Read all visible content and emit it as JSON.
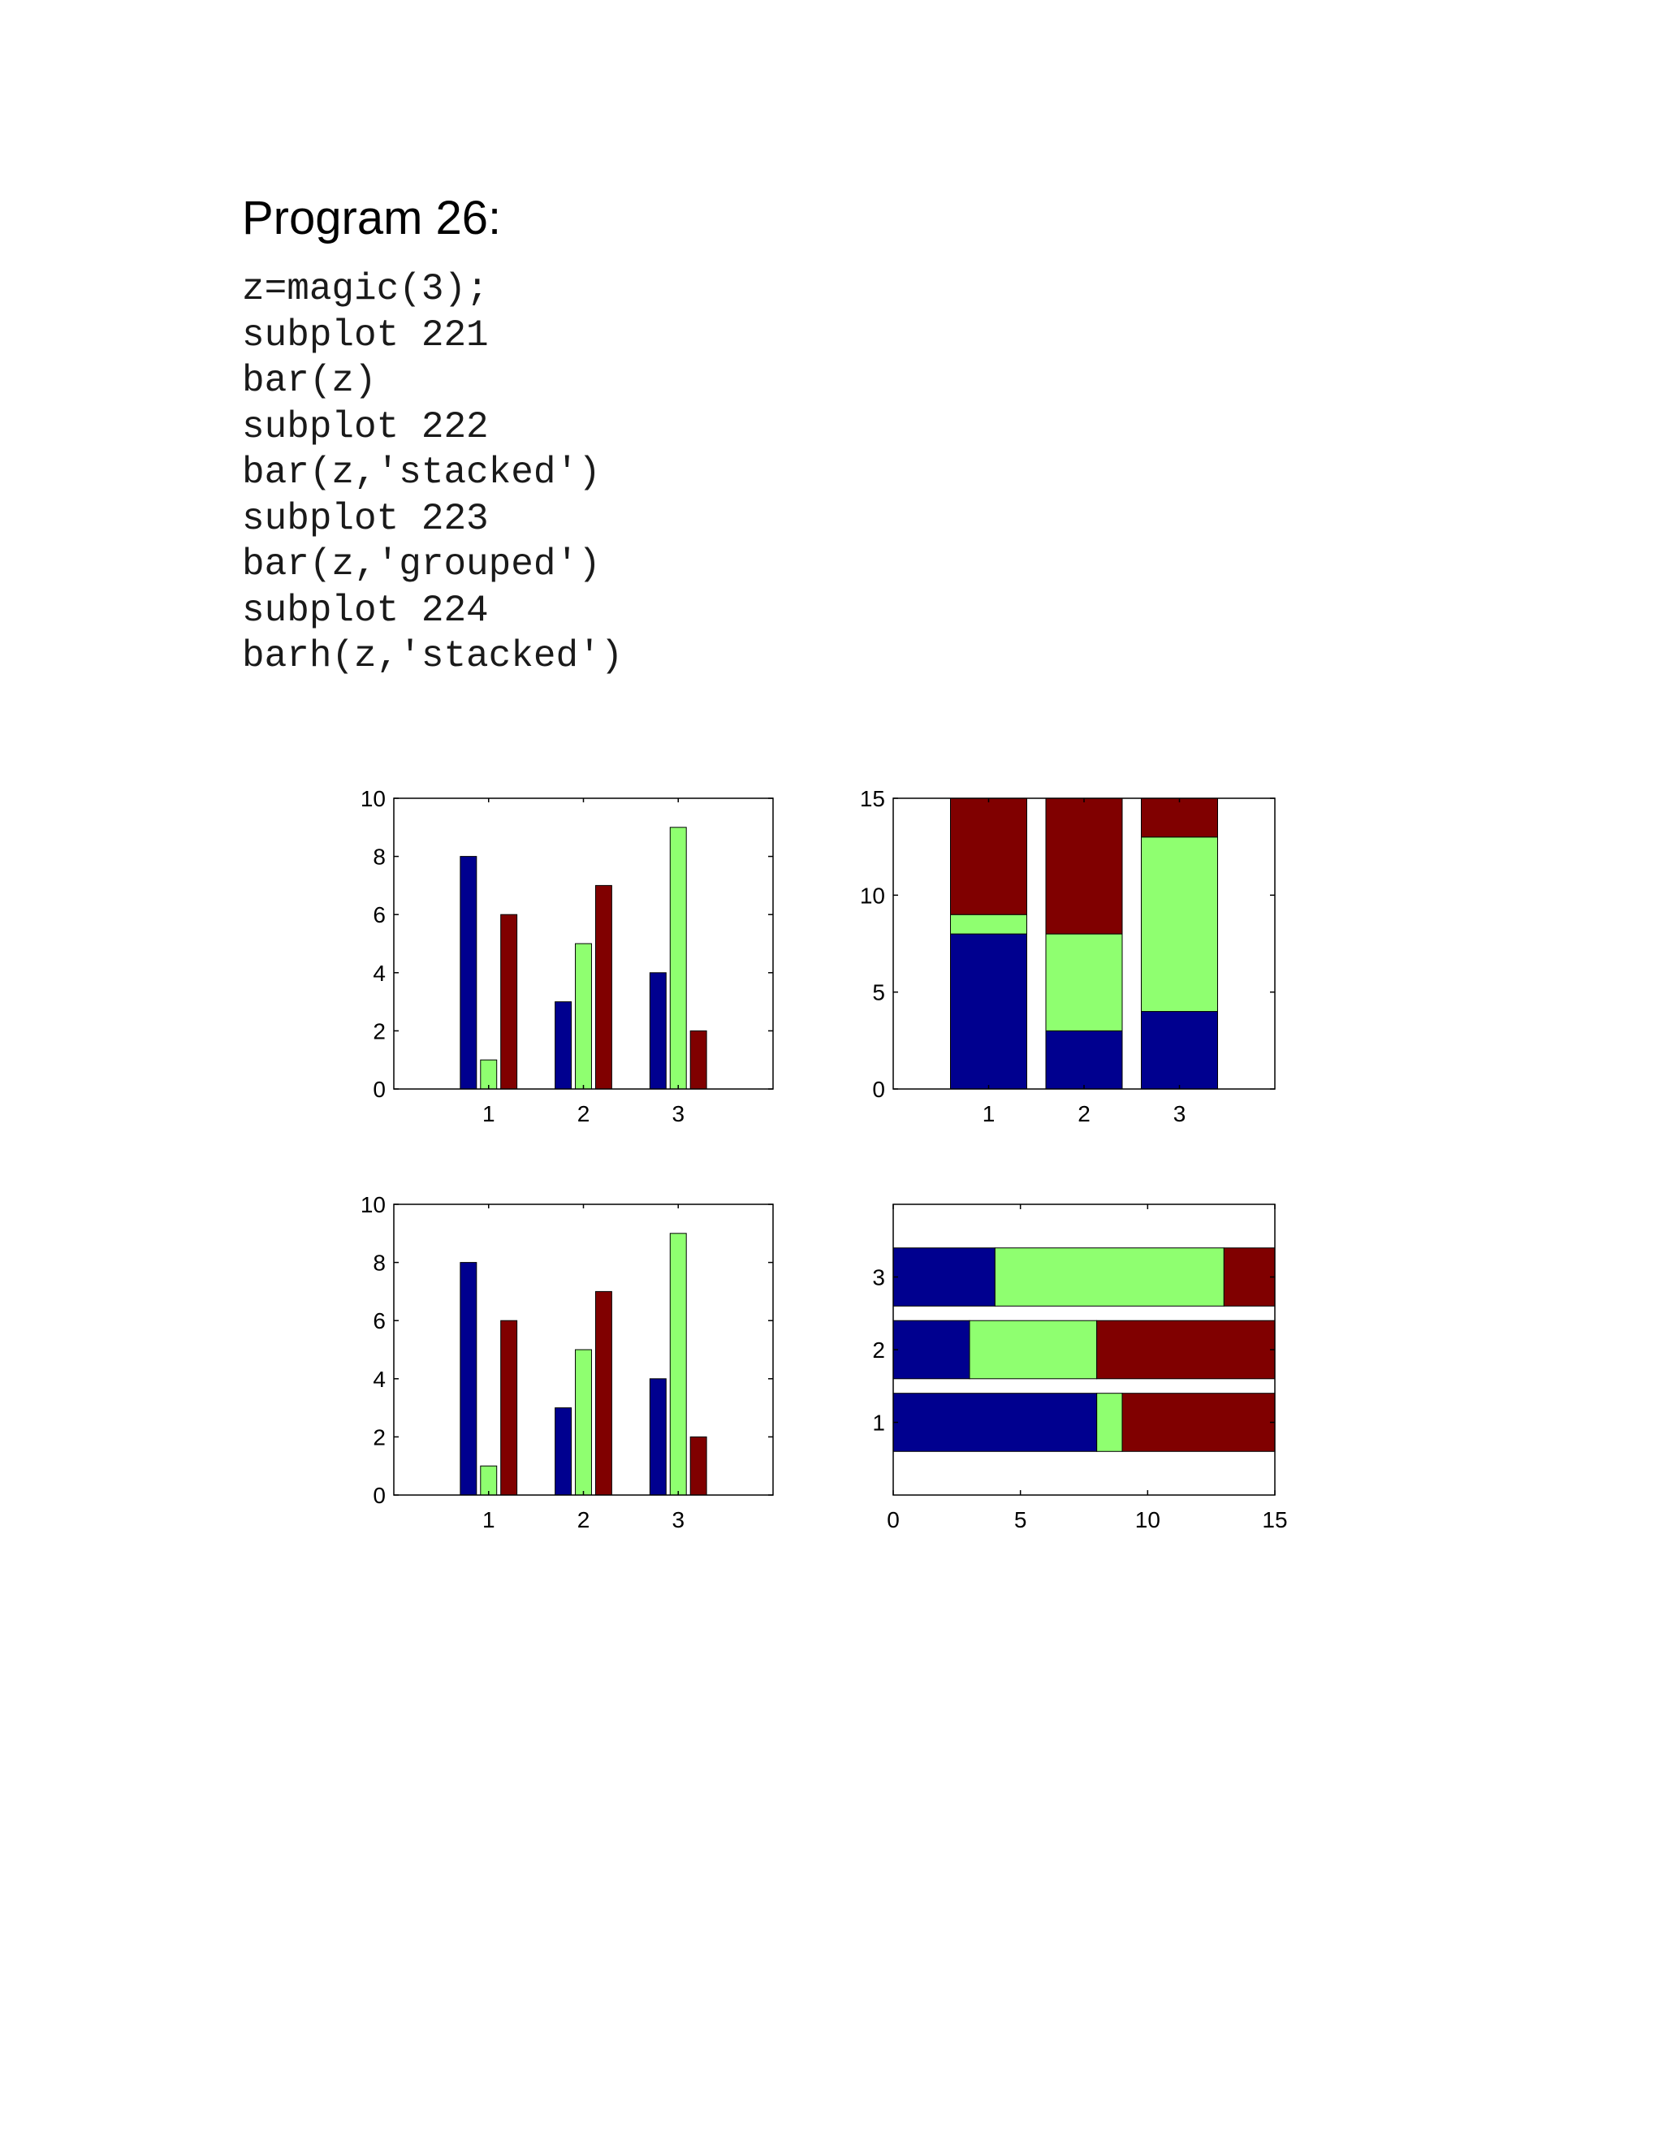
{
  "document": {
    "title": "Program 26:",
    "code_lines": [
      "z=magic(3);",
      "subplot 221",
      "bar(z)",
      "subplot 222",
      "bar(z,'stacked')",
      "subplot 223",
      "bar(z,'grouped')",
      "subplot 224",
      "barh(z,'stacked')"
    ]
  },
  "series_colors": [
    "#00008f",
    "#8fff70",
    "#800000"
  ],
  "chart_data": [
    {
      "type": "bar",
      "mode": "grouped",
      "orientation": "vertical",
      "categories": [
        "1",
        "2",
        "3"
      ],
      "series": [
        {
          "values": [
            8,
            3,
            4
          ]
        },
        {
          "values": [
            1,
            5,
            9
          ]
        },
        {
          "values": [
            6,
            7,
            2
          ]
        }
      ],
      "ylim": [
        0,
        10
      ],
      "yticks": [
        0,
        2,
        4,
        6,
        8,
        10
      ],
      "xlim": [
        0,
        4
      ]
    },
    {
      "type": "bar",
      "mode": "stacked",
      "orientation": "vertical",
      "categories": [
        "1",
        "2",
        "3"
      ],
      "series": [
        {
          "values": [
            8,
            3,
            4
          ]
        },
        {
          "values": [
            1,
            5,
            9
          ]
        },
        {
          "values": [
            6,
            7,
            2
          ]
        }
      ],
      "ylim": [
        0,
        15
      ],
      "yticks": [
        0,
        5,
        10,
        15
      ],
      "xlim": [
        0,
        4
      ]
    },
    {
      "type": "bar",
      "mode": "grouped",
      "orientation": "vertical",
      "categories": [
        "1",
        "2",
        "3"
      ],
      "series": [
        {
          "values": [
            8,
            3,
            4
          ]
        },
        {
          "values": [
            1,
            5,
            9
          ]
        },
        {
          "values": [
            6,
            7,
            2
          ]
        }
      ],
      "ylim": [
        0,
        10
      ],
      "yticks": [
        0,
        2,
        4,
        6,
        8,
        10
      ],
      "xlim": [
        0,
        4
      ]
    },
    {
      "type": "bar",
      "mode": "stacked",
      "orientation": "horizontal",
      "categories": [
        "1",
        "2",
        "3"
      ],
      "series": [
        {
          "values": [
            8,
            3,
            4
          ]
        },
        {
          "values": [
            1,
            5,
            9
          ]
        },
        {
          "values": [
            6,
            7,
            2
          ]
        }
      ],
      "xlim": [
        0,
        15
      ],
      "xticks": [
        0,
        5,
        10,
        15
      ],
      "ylim": [
        0,
        4
      ]
    }
  ]
}
